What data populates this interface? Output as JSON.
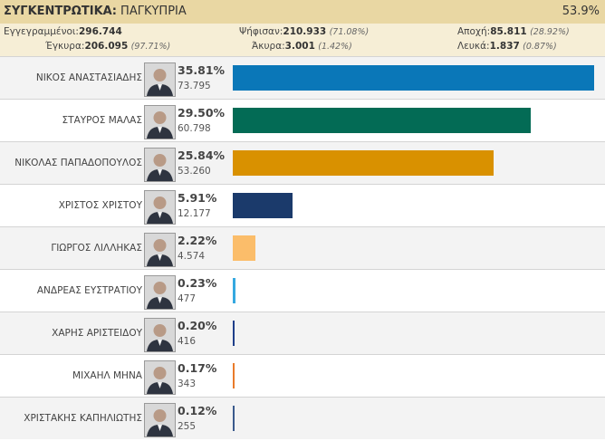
{
  "header": {
    "label": "ΣΥΓΚΕΝΤΡΩΤΙΚΑ:",
    "region": "ΠΑΓΚΥΠΡΙΑ",
    "counted": "53.9%"
  },
  "stats": {
    "registered_label": "Εγγεγραμμένοι:",
    "registered": "296.744",
    "voted_label": "Ψήφισαν:",
    "voted": "210.933",
    "voted_pct": "(71.08%)",
    "abstention_label": "Αποχή:",
    "abstention": "85.811",
    "abstention_pct": "(28.92%)",
    "valid_label": "Έγκυρα:",
    "valid": "206.095",
    "valid_pct": "(97.71%)",
    "invalid_label": "Άκυρα:",
    "invalid": "3.001",
    "invalid_pct": "(1.42%)",
    "blank_label": "Λευκά:",
    "blank": "1.837",
    "blank_pct": "(0.87%)"
  },
  "chart_data": {
    "type": "bar",
    "orientation": "horizontal",
    "categories": [
      "ΝΙΚΟΣ ΑΝΑΣΤΑΣΙΑΔΗΣ",
      "ΣΤΑΥΡΟΣ ΜΑΛΑΣ",
      "ΝΙΚΟΛΑΣ ΠΑΠΑΔΟΠΟΥΛΟΣ",
      "ΧΡΙΣΤΟΣ ΧΡΙΣΤΟΥ",
      "ΓΙΩΡΓΟΣ ΛΙΛΛΗΚΑΣ",
      "ΑΝΔΡΕΑΣ ΕΥΣΤΡΑΤΙΟΥ",
      "ΧΑΡΗΣ ΑΡΙΣΤΕΙΔΟΥ",
      "ΜΙΧΑΗΛ ΜΗΝΑ",
      "ΧΡΙΣΤΑΚΗΣ ΚΑΠΗΛΙΩΤΗΣ"
    ],
    "values": [
      35.81,
      29.5,
      25.84,
      5.91,
      2.22,
      0.23,
      0.2,
      0.17,
      0.12
    ],
    "pct_labels": [
      "35.81%",
      "29.50%",
      "25.84%",
      "5.91%",
      "2.22%",
      "0.23%",
      "0.20%",
      "0.17%",
      "0.12%"
    ],
    "votes": [
      "73.795",
      "60.798",
      "53.260",
      "12.177",
      "4.574",
      "477",
      "416",
      "343",
      "255"
    ],
    "colors": [
      "#0a77b8",
      "#036b55",
      "#d99100",
      "#1b3a6b",
      "#fbbd6a",
      "#35a8e0",
      "#1e3f8a",
      "#e97b2a",
      "#3a5a8c"
    ],
    "xlim": [
      0,
      35.81
    ]
  }
}
